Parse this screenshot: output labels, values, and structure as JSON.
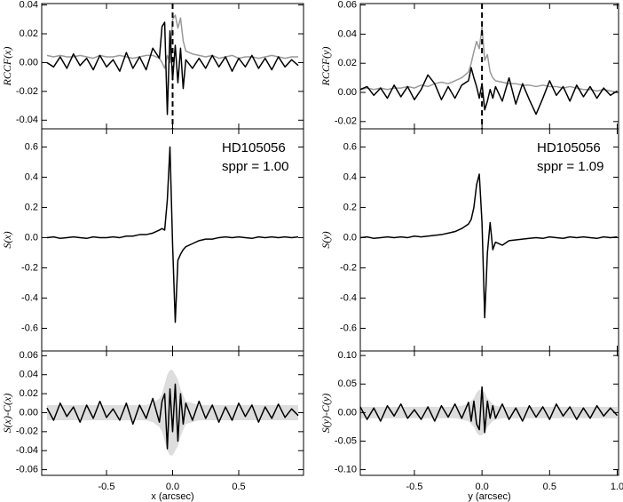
{
  "chart_data": [
    {
      "type": "line",
      "ylabel": "RCCF(x)",
      "x": [
        -0.95,
        -0.9,
        -0.85,
        -0.8,
        -0.75,
        -0.7,
        -0.65,
        -0.6,
        -0.55,
        -0.5,
        -0.45,
        -0.4,
        -0.35,
        -0.3,
        -0.25,
        -0.2,
        -0.15,
        -0.1,
        -0.08,
        -0.06,
        -0.04,
        -0.02,
        0,
        0.02,
        0.04,
        0.06,
        0.08,
        0.1,
        0.15,
        0.2,
        0.25,
        0.3,
        0.35,
        0.4,
        0.45,
        0.5,
        0.55,
        0.6,
        0.65,
        0.7,
        0.75,
        0.8,
        0.85,
        0.9,
        0.95
      ],
      "xlim": [
        -0.99,
        0.99
      ],
      "xticks": [
        -0.5,
        0,
        0.5
      ],
      "ylim": [
        -0.046,
        0.041
      ],
      "yticks": [
        -0.04,
        -0.02,
        {
          "value": 0,
          "label": "0.00"
        },
        0.02,
        0.04
      ],
      "vline": 0,
      "series": [
        {
          "color": "#999999",
          "values": [
            0.005,
            0.004,
            0.005,
            0.004,
            0.004,
            0.005,
            0.004,
            0.003,
            0.005,
            0.004,
            0.004,
            0.005,
            0.004,
            0.003,
            0.004,
            0.005,
            0.005,
            0.003,
            0,
            -0.004,
            0.005,
            0,
            0.03,
            0.033,
            0.024,
            0.031,
            0.015,
            0.008,
            0.006,
            0.005,
            0.004,
            0.005,
            0.003,
            0.004,
            0.005,
            0.003,
            0.004,
            0.004,
            0.003,
            0.004,
            0.005,
            0.004,
            0.003,
            0.004,
            0.004
          ]
        },
        {
          "color": "#000000",
          "values": [
            0,
            -0.003,
            0.004,
            -0.004,
            0.006,
            -0.002,
            0.003,
            -0.005,
            0.005,
            -0.003,
            0.002,
            -0.006,
            0.007,
            -0.004,
            0.004,
            -0.005,
            0.01,
            0.003,
            0.025,
            0.028,
            -0.036,
            0.022,
            -0.012,
            0.012,
            -0.014,
            0.01,
            -0.018,
            0.002,
            -0.004,
            0.003,
            -0.004,
            0.005,
            -0.003,
            0.004,
            -0.006,
            0.003,
            -0.003,
            0.005,
            -0.004,
            0.003,
            -0.005,
            0.004,
            -0.003,
            0.002,
            -0.002
          ]
        }
      ]
    },
    {
      "type": "line",
      "ylabel": "S(x)",
      "annotations": [
        "HD105056",
        "sppr = 1.00"
      ],
      "x": [
        -0.95,
        -0.9,
        -0.85,
        -0.8,
        -0.75,
        -0.7,
        -0.65,
        -0.6,
        -0.55,
        -0.5,
        -0.45,
        -0.4,
        -0.35,
        -0.3,
        -0.25,
        -0.2,
        -0.15,
        -0.1,
        -0.08,
        -0.06,
        -0.04,
        -0.02,
        0,
        0.02,
        0.04,
        0.06,
        0.08,
        0.1,
        0.15,
        0.2,
        0.25,
        0.3,
        0.35,
        0.4,
        0.45,
        0.5,
        0.55,
        0.6,
        0.65,
        0.7,
        0.75,
        0.8,
        0.85,
        0.9,
        0.95
      ],
      "xlim": [
        -0.99,
        0.99
      ],
      "xticks": [
        -0.5,
        0,
        0.5
      ],
      "ylim": [
        -0.75,
        0.72
      ],
      "yticks": [
        -0.6,
        -0.4,
        -0.2,
        {
          "value": 0,
          "label": "0.0"
        },
        0.2,
        0.4,
        0.6
      ],
      "series": [
        {
          "color": "#000000",
          "values": [
            0,
            0.005,
            -0.005,
            0,
            0.005,
            0,
            -0.005,
            0.005,
            0,
            0,
            0.005,
            0,
            0.01,
            0.01,
            0.02,
            0.02,
            0.03,
            0.05,
            0.06,
            0.05,
            0.25,
            0.6,
            -0.05,
            -0.56,
            -0.15,
            -0.11,
            -0.08,
            -0.06,
            -0.04,
            -0.02,
            -0.01,
            -0.01,
            0,
            0.005,
            0,
            0.005,
            0,
            -0.005,
            0.005,
            0,
            0.005,
            0,
            0.005,
            0,
            0.005
          ]
        }
      ]
    },
    {
      "type": "line",
      "ylabel": "S(x)-C(x)",
      "xlabel": "x (arcsec)",
      "x": [
        -0.95,
        -0.9,
        -0.85,
        -0.8,
        -0.75,
        -0.7,
        -0.65,
        -0.6,
        -0.55,
        -0.5,
        -0.45,
        -0.4,
        -0.35,
        -0.3,
        -0.25,
        -0.2,
        -0.15,
        -0.1,
        -0.08,
        -0.06,
        -0.04,
        -0.02,
        0,
        0.02,
        0.04,
        0.06,
        0.08,
        0.1,
        0.15,
        0.2,
        0.25,
        0.3,
        0.35,
        0.4,
        0.45,
        0.5,
        0.55,
        0.6,
        0.65,
        0.7,
        0.75,
        0.8,
        0.85,
        0.9,
        0.95
      ],
      "xlim": [
        -0.99,
        0.99
      ],
      "xticks": [
        -0.5,
        {
          "value": 0,
          "label": "0.0"
        },
        0.5
      ],
      "ylim": [
        -0.066,
        0.065
      ],
      "yticks": [
        -0.06,
        -0.04,
        -0.02,
        {
          "value": 0,
          "label": "0.00"
        },
        0.02,
        0.04,
        0.06
      ],
      "band": {
        "color": "#dddddd",
        "upper": [
          0.008,
          0.008,
          0.008,
          0.008,
          0.008,
          0.008,
          0.008,
          0.008,
          0.008,
          0.008,
          0.008,
          0.008,
          0.008,
          0.008,
          0.008,
          0.008,
          0.01,
          0.015,
          0.02,
          0.03,
          0.04,
          0.045,
          0.045,
          0.04,
          0.035,
          0.025,
          0.018,
          0.012,
          0.01,
          0.008,
          0.008,
          0.008,
          0.008,
          0.008,
          0.008,
          0.008,
          0.008,
          0.008,
          0.008,
          0.008,
          0.008,
          0.008,
          0.008,
          0.008,
          0.008
        ],
        "lower": [
          -0.008,
          -0.008,
          -0.008,
          -0.008,
          -0.008,
          -0.008,
          -0.008,
          -0.008,
          -0.008,
          -0.008,
          -0.008,
          -0.008,
          -0.008,
          -0.008,
          -0.008,
          -0.008,
          -0.01,
          -0.015,
          -0.02,
          -0.03,
          -0.04,
          -0.045,
          -0.045,
          -0.04,
          -0.035,
          -0.025,
          -0.018,
          -0.012,
          -0.01,
          -0.008,
          -0.008,
          -0.008,
          -0.008,
          -0.008,
          -0.008,
          -0.008,
          -0.008,
          -0.008,
          -0.008,
          -0.008,
          -0.008,
          -0.008,
          -0.008,
          -0.008,
          -0.008
        ]
      },
      "series": [
        {
          "color": "#000000",
          "values": [
            0.005,
            -0.008,
            0.01,
            -0.004,
            0.006,
            -0.01,
            0.008,
            -0.006,
            0.012,
            -0.005,
            0.004,
            -0.008,
            0.01,
            -0.012,
            0.008,
            -0.006,
            0.015,
            -0.01,
            0.012,
            0.02,
            -0.038,
            0.025,
            -0.02,
            0.03,
            -0.03,
            0.02,
            -0.012,
            0.01,
            -0.008,
            0.012,
            -0.006,
            0.008,
            -0.01,
            0.006,
            -0.008,
            0.01,
            -0.004,
            0.008,
            -0.01,
            0.006,
            -0.006,
            0.009,
            -0.005,
            0.004,
            -0.003
          ]
        }
      ]
    },
    {
      "type": "line",
      "ylabel": "RCCF(y)",
      "x": [
        -0.9,
        -0.85,
        -0.8,
        -0.75,
        -0.7,
        -0.65,
        -0.6,
        -0.55,
        -0.5,
        -0.45,
        -0.4,
        -0.35,
        -0.3,
        -0.25,
        -0.2,
        -0.15,
        -0.1,
        -0.08,
        -0.06,
        -0.04,
        -0.02,
        0,
        0.02,
        0.04,
        0.06,
        0.08,
        0.1,
        0.15,
        0.2,
        0.25,
        0.3,
        0.35,
        0.4,
        0.45,
        0.5,
        0.55,
        0.6,
        0.65,
        0.7,
        0.75,
        0.8,
        0.85,
        0.9,
        0.95,
        1.0
      ],
      "xlim": [
        -0.9,
        1.01
      ],
      "xticks": [
        -0.5,
        0,
        0.5,
        1
      ],
      "ylim": [
        -0.025,
        0.061
      ],
      "yticks": [
        -0.02,
        {
          "value": 0,
          "label": "0.00"
        },
        0.02,
        0.04,
        0.06
      ],
      "vline": 0,
      "series": [
        {
          "color": "#999999",
          "values": [
            0.002,
            0.003,
            0.002,
            0.003,
            0.002,
            0.003,
            0.003,
            0.004,
            0.003,
            0.005,
            0.004,
            0.006,
            0.007,
            0.006,
            0.008,
            0.01,
            0.014,
            0.02,
            0.028,
            0.035,
            0.03,
            0.045,
            0.022,
            0.026,
            0.014,
            0.01,
            0.008,
            0.007,
            0.006,
            0.006,
            0.005,
            0.005,
            0.004,
            0.005,
            0.004,
            0.004,
            0.003,
            0.004,
            0.003,
            0.002,
            0.002,
            0.001,
            0.002,
            0.001,
            0
          ]
        },
        {
          "color": "#000000",
          "values": [
            0.002,
            0.004,
            -0.002,
            0.003,
            -0.004,
            0.005,
            -0.003,
            0.004,
            -0.005,
            0.002,
            0.012,
            0.006,
            -0.005,
            0.004,
            -0.004,
            0.005,
            0.008,
            0.017,
            0.01,
            0.004,
            -0.004,
            0.006,
            -0.012,
            -0.006,
            0.002,
            -0.004,
            0.004,
            -0.006,
            0.01,
            -0.008,
            0.006,
            -0.005,
            -0.015,
            -0.004,
            0.008,
            -0.002,
            0.004,
            -0.006,
            0.005,
            -0.003,
            0.004,
            -0.004,
            0.003,
            -0.002,
            0.001
          ]
        }
      ]
    },
    {
      "type": "line",
      "ylabel": "S(y)",
      "annotations": [
        "HD105056",
        "sppr = 1.09"
      ],
      "x": [
        -0.9,
        -0.85,
        -0.8,
        -0.75,
        -0.7,
        -0.65,
        -0.6,
        -0.55,
        -0.5,
        -0.45,
        -0.4,
        -0.35,
        -0.3,
        -0.25,
        -0.2,
        -0.15,
        -0.1,
        -0.08,
        -0.06,
        -0.04,
        -0.02,
        0,
        0.02,
        0.04,
        0.06,
        0.08,
        0.1,
        0.15,
        0.2,
        0.25,
        0.3,
        0.35,
        0.4,
        0.45,
        0.5,
        0.55,
        0.6,
        0.65,
        0.7,
        0.75,
        0.8,
        0.85,
        0.9,
        0.95,
        1.0
      ],
      "xlim": [
        -0.9,
        1.01
      ],
      "xticks": [
        -0.5,
        0,
        0.5,
        1
      ],
      "ylim": [
        -0.75,
        0.72
      ],
      "yticks": [
        -0.6,
        -0.4,
        -0.2,
        {
          "value": 0,
          "label": "0.0"
        },
        0.2,
        0.4,
        0.6
      ],
      "series": [
        {
          "color": "#000000",
          "values": [
            0,
            0.005,
            -0.005,
            0,
            0.005,
            0,
            0.005,
            0,
            0.01,
            0.005,
            0.01,
            0.015,
            0.02,
            0.03,
            0.04,
            0.06,
            0.09,
            0.12,
            0.2,
            0.35,
            0.42,
            0.1,
            -0.53,
            -0.1,
            0.1,
            -0.08,
            -0.03,
            -0.05,
            -0.02,
            -0.015,
            -0.01,
            -0.005,
            0,
            -0.005,
            0.005,
            0,
            -0.005,
            0.005,
            0,
            0.005,
            0,
            -0.005,
            0.005,
            0,
            0.005
          ]
        }
      ]
    },
    {
      "type": "line",
      "ylabel": "S(y)-C(y)",
      "xlabel": "y (arcsec)",
      "x": [
        -0.9,
        -0.85,
        -0.8,
        -0.75,
        -0.7,
        -0.65,
        -0.6,
        -0.55,
        -0.5,
        -0.45,
        -0.4,
        -0.35,
        -0.3,
        -0.25,
        -0.2,
        -0.15,
        -0.1,
        -0.08,
        -0.06,
        -0.04,
        -0.02,
        0,
        0.02,
        0.04,
        0.06,
        0.08,
        0.1,
        0.15,
        0.2,
        0.25,
        0.3,
        0.35,
        0.4,
        0.45,
        0.5,
        0.55,
        0.6,
        0.65,
        0.7,
        0.75,
        0.8,
        0.85,
        0.9,
        0.95,
        1.0
      ],
      "xlim": [
        -0.9,
        1.01
      ],
      "xticks": [
        -0.5,
        {
          "value": 0,
          "label": "0.0"
        },
        0.5,
        {
          "value": 1,
          "label": "1.0"
        }
      ],
      "ylim": [
        -0.11,
        0.108
      ],
      "yticks": [
        {
          "value": -0.1,
          "label": "-0.10"
        },
        -0.05,
        {
          "value": 0,
          "label": "0.00"
        },
        0.05,
        {
          "value": 0.1,
          "label": "0.10"
        }
      ],
      "band": {
        "color": "#dddddd",
        "upper": [
          0.01,
          0.01,
          0.01,
          0.01,
          0.01,
          0.01,
          0.01,
          0.01,
          0.01,
          0.01,
          0.01,
          0.01,
          0.01,
          0.01,
          0.01,
          0.012,
          0.015,
          0.02,
          0.025,
          0.035,
          0.04,
          0.04,
          0.035,
          0.025,
          0.02,
          0.015,
          0.012,
          0.01,
          0.01,
          0.01,
          0.01,
          0.01,
          0.01,
          0.01,
          0.01,
          0.01,
          0.01,
          0.01,
          0.01,
          0.01,
          0.01,
          0.01,
          0.01,
          0.01,
          0.01
        ],
        "lower": [
          -0.01,
          -0.01,
          -0.01,
          -0.01,
          -0.01,
          -0.01,
          -0.01,
          -0.01,
          -0.01,
          -0.01,
          -0.01,
          -0.01,
          -0.01,
          -0.01,
          -0.01,
          -0.012,
          -0.015,
          -0.02,
          -0.025,
          -0.035,
          -0.04,
          -0.04,
          -0.035,
          -0.025,
          -0.02,
          -0.015,
          -0.012,
          -0.01,
          -0.01,
          -0.01,
          -0.01,
          -0.01,
          -0.01,
          -0.01,
          -0.01,
          -0.01,
          -0.01,
          -0.01,
          -0.01,
          -0.01,
          -0.01,
          -0.01,
          -0.01,
          -0.01,
          -0.01
        ]
      },
      "series": [
        {
          "color": "#000000",
          "values": [
            0.01,
            -0.012,
            0.008,
            -0.015,
            0.012,
            -0.006,
            0.015,
            -0.01,
            0.005,
            -0.012,
            0.01,
            -0.015,
            0.012,
            -0.008,
            0.015,
            -0.01,
            0.018,
            -0.015,
            0.02,
            -0.02,
            -0.03,
            0.045,
            -0.035,
            0.02,
            -0.01,
            0.012,
            -0.01,
            0.015,
            -0.012,
            0.008,
            -0.015,
            0.012,
            -0.008,
            0.01,
            -0.012,
            0.015,
            -0.006,
            0.01,
            -0.012,
            0.008,
            -0.01,
            0.012,
            -0.006,
            0.008,
            -0.005
          ]
        }
      ]
    }
  ]
}
